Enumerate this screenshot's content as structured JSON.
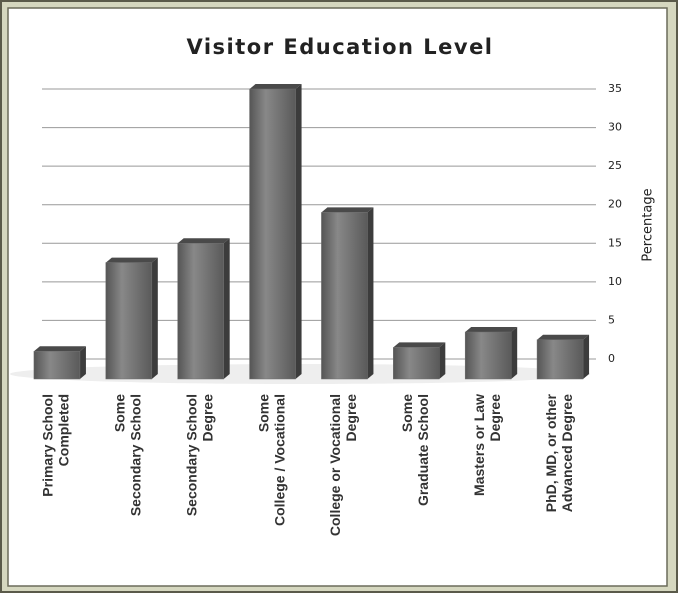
{
  "chart_data": {
    "type": "bar",
    "title": "Visitor Education Level",
    "categories": [
      [
        "Primary School",
        "Completed"
      ],
      [
        "Some",
        "Secondary School"
      ],
      [
        "Secondary School",
        "Degree"
      ],
      [
        "Some",
        "College / Vocational"
      ],
      [
        "College or Vocational",
        "Degree"
      ],
      [
        "Some",
        "Graduate School"
      ],
      [
        "Masters or Law",
        "Degree"
      ],
      [
        "PhD, MD, or other",
        "Advanced Degree"
      ]
    ],
    "values": [
      1,
      12.5,
      15,
      35,
      19,
      1.5,
      3.5,
      2.5
    ],
    "color": "#6f6f6f",
    "y_label": "Percentage",
    "ylim": [
      0,
      35
    ],
    "yticks": [
      0,
      5,
      10,
      15,
      20,
      25,
      30,
      35
    ],
    "grid": true,
    "y_axis_side": "right"
  }
}
